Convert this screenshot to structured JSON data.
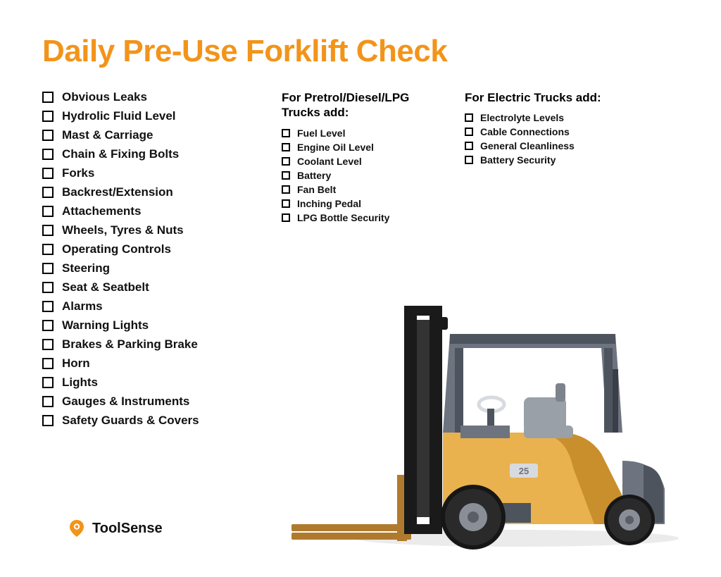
{
  "title": "Daily Pre-Use Forklift Check",
  "title_color": "#f2941a",
  "text_color": "#111111",
  "main_checklist": [
    "Obvious Leaks",
    "Hydrolic Fluid Level",
    "Mast & Carriage",
    "Chain & Fixing Bolts",
    "Forks",
    "Backrest/Extension",
    "Attachements",
    "Wheels, Tyres & Nuts",
    "Operating Controls",
    "Steering",
    "Seat & Seatbelt",
    "Alarms",
    "Warning Lights",
    "Brakes & Parking Brake",
    "Horn",
    "Lights",
    "Gauges & Instruments",
    "Safety Guards & Covers"
  ],
  "fuel_section": {
    "heading": "For Pretrol/Diesel/LPG Trucks add:",
    "items": [
      "Fuel Level",
      "Engine Oil Level",
      "Coolant Level",
      "Battery",
      "Fan Belt",
      "Inching Pedal",
      "LPG Bottle Security"
    ]
  },
  "electric_section": {
    "heading": "For Electric Trucks add:",
    "items": [
      "Electrolyte Levels",
      "Cable Connections",
      "General Cleanliness",
      "Battery Security"
    ]
  },
  "brand": {
    "name": "ToolSense",
    "icon_color": "#f2941a"
  },
  "forklift_colors": {
    "body": "#e9b24e",
    "body_shadow": "#c98f2c",
    "cab": "#6d7480",
    "cab_dark": "#4e545e",
    "mast": "#1a1a1a",
    "tire": "#2a2a2a",
    "tire_dark": "#161616",
    "rim": "#8a8f97",
    "seat": "#9aa0a8",
    "fork": "#b07a2e"
  },
  "checkbox_border": "#000000",
  "main_font_size": 17,
  "sub_font_size": 14
}
